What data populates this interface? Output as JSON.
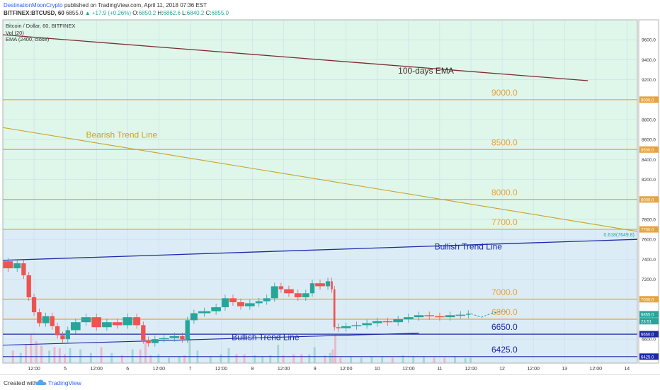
{
  "header": {
    "author": "DestinationMoonCrypto",
    "published": "published on TradingView.com, April 11, 2018 07:36 EST",
    "symbol": "BITFINEX:BTCUSD, 60",
    "last": "6855.0",
    "change": "▲ +17.9 (+0.26%)",
    "o_label": "O:",
    "o": "6850.2",
    "h_label": "H:",
    "h": "6862.6",
    "l_label": "L:",
    "l": "6840.2",
    "c_label": "C:",
    "c": "6855.0"
  },
  "legend": {
    "title": "Bitcoin / Dollar, 60, BITFINEX",
    "vol": "Vol (20)",
    "ema": "EMA (2400, close)"
  },
  "footer": {
    "created_with": "Created with",
    "brand": "TradingView",
    "logo_icon": "tradingview-cloud-icon"
  },
  "chart_data": {
    "type": "candlestick",
    "title": "Bitcoin / Dollar, 60, BITFINEX",
    "ylim": [
      6360,
      9800
    ],
    "y_ticks": [
      6600,
      6800,
      7000,
      7200,
      7400,
      7600,
      7800,
      8000,
      8200,
      8400,
      8600,
      8800,
      9000,
      9200,
      9400,
      9600
    ],
    "x_range_hours": [
      0,
      244
    ],
    "x_ticks": [
      {
        "t": 12,
        "label": "12:00"
      },
      {
        "t": 24,
        "label": "5"
      },
      {
        "t": 36,
        "label": "12:00"
      },
      {
        "t": 48,
        "label": "6"
      },
      {
        "t": 60,
        "label": "12:00"
      },
      {
        "t": 72,
        "label": "7"
      },
      {
        "t": 84,
        "label": "12:00"
      },
      {
        "t": 96,
        "label": "8"
      },
      {
        "t": 108,
        "label": "12:00"
      },
      {
        "t": 120,
        "label": "9"
      },
      {
        "t": 132,
        "label": "12:00"
      },
      {
        "t": 144,
        "label": "10"
      },
      {
        "t": 156,
        "label": "12:00"
      },
      {
        "t": 168,
        "label": "11"
      },
      {
        "t": 180,
        "label": "12:00"
      },
      {
        "t": 192,
        "label": "12"
      },
      {
        "t": 204,
        "label": "12:00"
      },
      {
        "t": 216,
        "label": "13"
      },
      {
        "t": 228,
        "label": "12:00"
      },
      {
        "t": 240,
        "label": "14"
      }
    ],
    "price_path": [
      [
        0,
        7380
      ],
      [
        4,
        7310
      ],
      [
        7,
        7360
      ],
      [
        9,
        7240
      ],
      [
        11,
        7020
      ],
      [
        13,
        6870
      ],
      [
        15,
        6760
      ],
      [
        18,
        6830
      ],
      [
        20,
        6730
      ],
      [
        22,
        6640
      ],
      [
        24,
        6600
      ],
      [
        26,
        6690
      ],
      [
        30,
        6770
      ],
      [
        34,
        6820
      ],
      [
        38,
        6720
      ],
      [
        42,
        6770
      ],
      [
        46,
        6740
      ],
      [
        50,
        6820
      ],
      [
        53,
        6740
      ],
      [
        55,
        6590
      ],
      [
        57,
        6560
      ],
      [
        60,
        6600
      ],
      [
        64,
        6610
      ],
      [
        68,
        6630
      ],
      [
        70,
        6600
      ],
      [
        72,
        6790
      ],
      [
        75,
        6860
      ],
      [
        80,
        6880
      ],
      [
        84,
        6920
      ],
      [
        87,
        7010
      ],
      [
        90,
        6970
      ],
      [
        93,
        6930
      ],
      [
        97,
        6960
      ],
      [
        100,
        6980
      ],
      [
        103,
        7010
      ],
      [
        106,
        7130
      ],
      [
        108,
        7100
      ],
      [
        112,
        7060
      ],
      [
        115,
        7020
      ],
      [
        118,
        7060
      ],
      [
        120,
        7160
      ],
      [
        124,
        7130
      ],
      [
        126,
        7180
      ],
      [
        127,
        7100
      ],
      [
        128,
        6720
      ],
      [
        130,
        6710
      ],
      [
        134,
        6730
      ],
      [
        138,
        6740
      ],
      [
        142,
        6760
      ],
      [
        146,
        6780
      ],
      [
        150,
        6770
      ],
      [
        154,
        6800
      ],
      [
        158,
        6820
      ],
      [
        162,
        6840
      ],
      [
        166,
        6830
      ],
      [
        170,
        6820
      ],
      [
        174,
        6840
      ],
      [
        178,
        6845
      ],
      [
        180,
        6855
      ]
    ],
    "forecast_path": [
      [
        180,
        6855
      ],
      [
        184,
        6820
      ],
      [
        188,
        6860
      ],
      [
        192,
        6880
      ],
      [
        194,
        6870
      ]
    ],
    "ema_100_days": {
      "start": [
        0,
        9650
      ],
      "end": [
        225,
        9190
      ],
      "color": "#7b2e2e"
    },
    "bearish_trend_line": {
      "start": [
        0,
        8720
      ],
      "end": [
        250,
        7680
      ],
      "color": "#c9a227"
    },
    "bullish_trend_line_upper": {
      "start": [
        0,
        7390
      ],
      "end": [
        250,
        7600
      ],
      "color": "#1a2aa8"
    },
    "bullish_trend_line_lower": {
      "start": [
        0,
        6540
      ],
      "end": [
        160,
        6660
      ],
      "color": "#1a2aa8"
    },
    "horizontal_levels": [
      {
        "price": 9000,
        "label": "9000.0",
        "axis_label": "9000.0",
        "color": "#e8a33d"
      },
      {
        "price": 8500,
        "label": "8500.0",
        "axis_label": "8500.0",
        "color": "#e8a33d"
      },
      {
        "price": 8000,
        "label": "8000.0",
        "axis_label": "8000.0",
        "color": "#e8a33d"
      },
      {
        "price": 7700,
        "label": "7700.0",
        "axis_label": "7700.0",
        "color": "#e8a33d"
      },
      {
        "price": 7000,
        "label": "7000.0",
        "axis_label": "7000.0",
        "color": "#e8a33d"
      },
      {
        "price": 6800,
        "label": "6800.0",
        "axis_label": "6800.0",
        "color": "#e8a33d"
      },
      {
        "price": 6650,
        "label": "6650.0",
        "axis_label": "6650.0",
        "color": "#1a2aa8"
      },
      {
        "price": 6425,
        "label": "6425.0",
        "axis_label": "6425.0",
        "color": "#1a2aa8"
      }
    ],
    "fib_label": {
      "text": "0.618(7649.8)",
      "price": 7649.8
    },
    "zones": [
      {
        "from": 7700,
        "to": 9800,
        "color": "#dff6ea"
      },
      {
        "from": 6360,
        "to": 7700,
        "color": "#dcecf7"
      }
    ],
    "annotations": [
      {
        "text": "100-days EMA",
        "t": 152,
        "price": 9260,
        "color": "#4a2a2a"
      },
      {
        "text": "Bearish Trend Line",
        "t": 32,
        "price": 8620,
        "color": "#c9a227"
      },
      {
        "text": "Bullish Trend Line",
        "t": 166,
        "price": 7500,
        "color": "#1a2aa8"
      },
      {
        "text": "Bullish Trend Line",
        "t": 88,
        "price": 6590,
        "color": "#1a2aa8"
      }
    ],
    "axis_badges": [
      {
        "text": "6855.0",
        "price": 6850,
        "color": "#26a69a"
      },
      {
        "text": "23:51",
        "price": 6780,
        "color": "#26a69a"
      }
    ]
  }
}
